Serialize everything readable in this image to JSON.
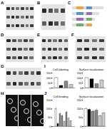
{
  "panel_labels": [
    "A",
    "B",
    "C",
    "D",
    "E",
    "F",
    "G",
    "I",
    "H",
    "J"
  ],
  "chart_data": [
    {
      "type": "bar",
      "title": "Cell labeling",
      "categories": [
        null,
        null,
        null,
        null
      ],
      "values": [
        100,
        22,
        65,
        30
      ],
      "errors": [
        8,
        5,
        9,
        6
      ],
      "colors": [
        "#ffffff",
        "#000000",
        "#888888",
        "#cccccc"
      ],
      "ylim": [
        0,
        150
      ],
      "yticks": [
        0,
        50,
        100,
        150
      ],
      "tick_labels": "y"
    },
    {
      "type": "bar",
      "title": "Surface localization",
      "categories": [
        null,
        null,
        null,
        null
      ],
      "values": [
        100,
        88,
        40,
        78
      ],
      "errors": [
        7,
        9,
        6,
        8
      ],
      "colors": [
        "#ffffff",
        "#000000",
        "#888888",
        "#cccccc"
      ],
      "ylim": [
        0,
        150
      ],
      "yticks": [
        0,
        50,
        100,
        150
      ],
      "tick_labels": "y"
    },
    {
      "type": "bar",
      "title": "Cell binding",
      "categories": [
        null,
        null,
        null,
        null,
        null,
        null,
        null,
        null
      ],
      "values": [
        100,
        15,
        70,
        60,
        25,
        80,
        45,
        30
      ],
      "errors": [
        8,
        4,
        9,
        7,
        5,
        8,
        6,
        5
      ],
      "colors": [
        "#ffffff",
        "#000000",
        "#888888",
        "#888888",
        "#cccccc",
        "#888888",
        "#cccccc",
        "#cccccc"
      ],
      "ylim": [
        0,
        150
      ],
      "yticks": [
        0,
        50,
        100,
        150
      ],
      "tick_labels": "y"
    },
    {
      "type": "bar",
      "title": "Surface localization",
      "categories": [
        null,
        null,
        null,
        null,
        null,
        null
      ],
      "values": [
        100,
        95,
        85,
        90,
        60,
        75
      ],
      "errors": [
        7,
        8,
        8,
        9,
        6,
        7
      ],
      "colors": [
        "#ffffff",
        "#000000",
        "#888888",
        "#888888",
        "#cccccc",
        "#cccccc"
      ],
      "ylim": [
        0,
        150
      ],
      "yticks": [
        0,
        50,
        100,
        150
      ],
      "tick_labels": "y"
    }
  ]
}
